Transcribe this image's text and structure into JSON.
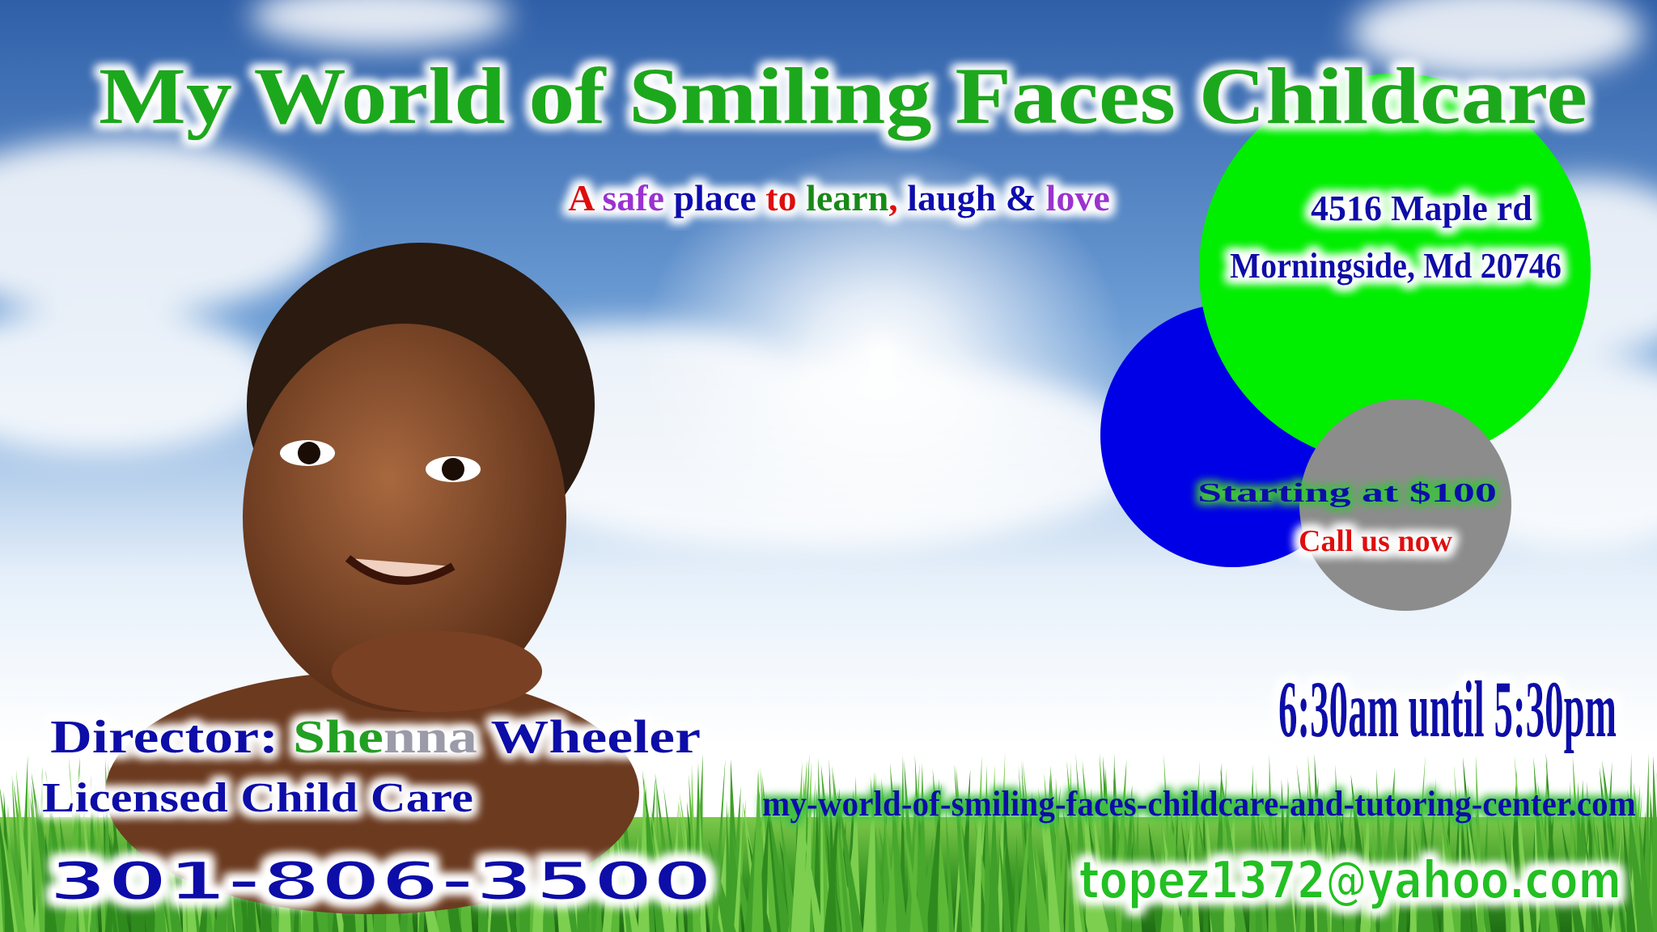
{
  "header": {
    "title": "My World of Smiling Faces Childcare",
    "tagline": [
      "A",
      "safe",
      "place",
      "to",
      "learn",
      ",",
      "laugh",
      "&",
      "love"
    ]
  },
  "address": {
    "street": "4516 Maple rd",
    "city": "Morningside, Md 20746"
  },
  "offer": {
    "price": "Starting at $100",
    "cta": "Call us now"
  },
  "hours": "6:30am until 5:30pm",
  "director": {
    "label": "Director:",
    "first_a": "She",
    "first_b": "nna",
    "last": "Wheeler"
  },
  "license": "Licensed Child Care",
  "phone": "301-806-3500",
  "website": "my-world-of-smiling-faces-childcare-and-tutoring-center.com",
  "email": "topez1372@yahoo.com"
}
